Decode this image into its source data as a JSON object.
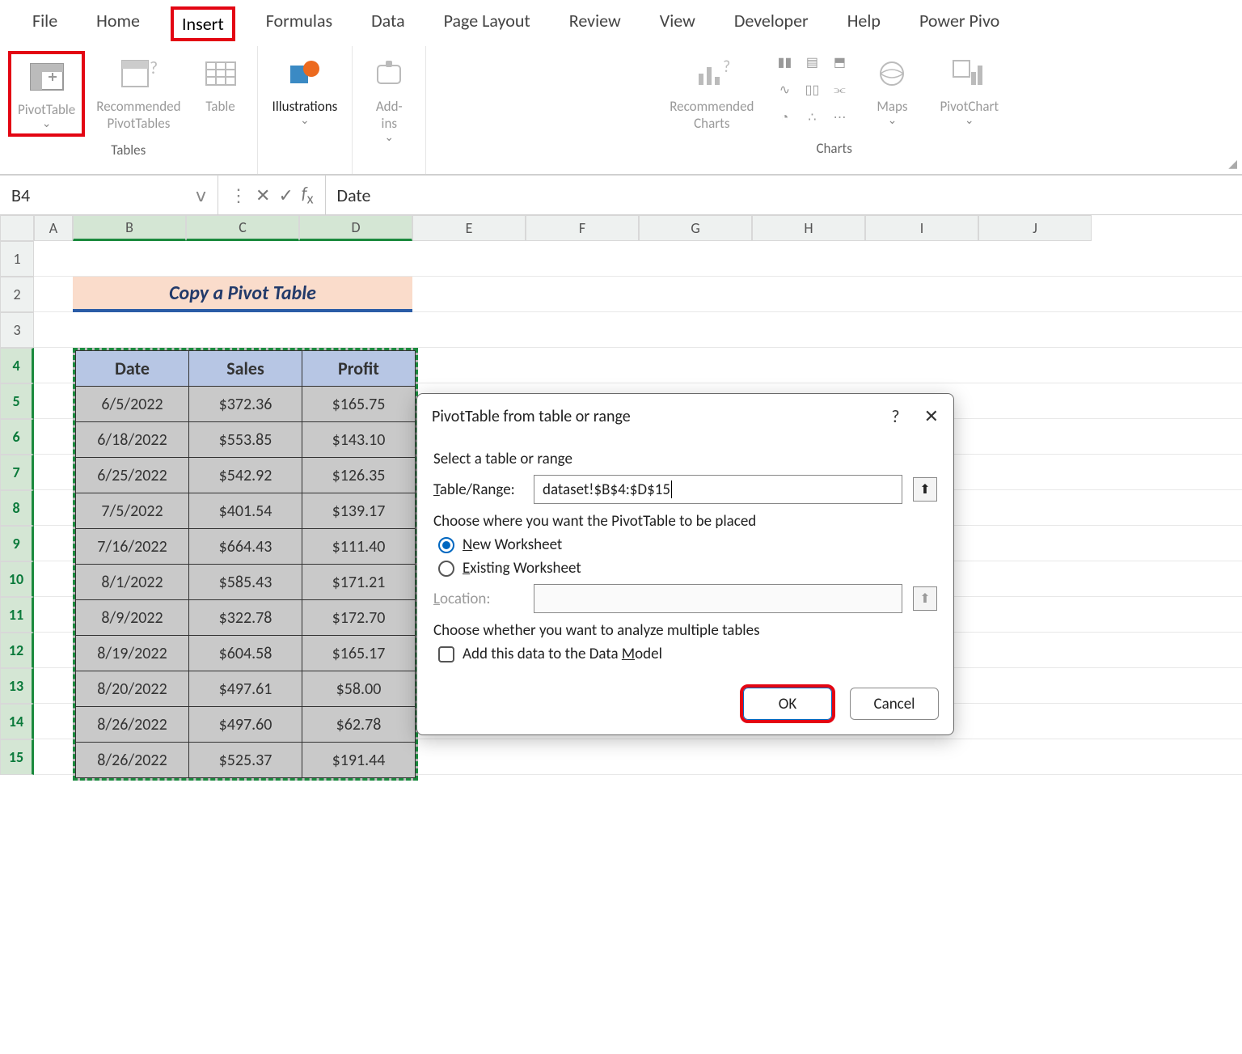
{
  "tabs": {
    "file": "File",
    "home": "Home",
    "insert": "Insert",
    "formulas": "Formulas",
    "data": "Data",
    "pagelayout": "Page Layout",
    "review": "Review",
    "view": "View",
    "developer": "Developer",
    "help": "Help",
    "powerpivot": "Power Pivo"
  },
  "ribbon": {
    "pivottable": "PivotTable",
    "recpivot": "Recommended\nPivotTables",
    "table": "Table",
    "illustrations": "Illustrations",
    "addins": "Add-\nins",
    "reccharts": "Recommended\nCharts",
    "maps": "Maps",
    "pivotchart": "PivotChart",
    "group_tables": "Tables",
    "group_charts": "Charts"
  },
  "namebox": "B4",
  "fx_value": "Date",
  "col_headers": [
    "A",
    "B",
    "C",
    "D",
    "E",
    "F",
    "G",
    "H",
    "I",
    "J"
  ],
  "row_headers": [
    "1",
    "2",
    "3",
    "4",
    "5",
    "6",
    "7",
    "8",
    "9",
    "10",
    "11",
    "12",
    "13",
    "14",
    "15"
  ],
  "banner": "Copy a Pivot Table",
  "table_headers": [
    "Date",
    "Sales",
    "Profit"
  ],
  "table_rows": [
    [
      "6/5/2022",
      "$372.36",
      "$165.75"
    ],
    [
      "6/18/2022",
      "$553.85",
      "$143.10"
    ],
    [
      "6/25/2022",
      "$542.92",
      "$126.35"
    ],
    [
      "7/5/2022",
      "$401.54",
      "$139.17"
    ],
    [
      "7/16/2022",
      "$664.43",
      "$111.40"
    ],
    [
      "8/1/2022",
      "$585.43",
      "$171.21"
    ],
    [
      "8/9/2022",
      "$322.78",
      "$172.70"
    ],
    [
      "8/19/2022",
      "$604.58",
      "$165.17"
    ],
    [
      "8/20/2022",
      "$497.61",
      "$58.00"
    ],
    [
      "8/26/2022",
      "$497.60",
      "$62.78"
    ],
    [
      "8/26/2022",
      "$525.37",
      "$191.44"
    ]
  ],
  "dialog": {
    "title": "PivotTable from table or range",
    "sec1": "Select a table or range",
    "tr_label": "Table/Range:",
    "tr_value": "dataset!$B$4:$D$15",
    "sec2": "Choose where you want the PivotTable to be placed",
    "opt_new": "New Worksheet",
    "opt_exist": "Existing Worksheet",
    "loc_label": "Location:",
    "sec3": "Choose whether you want to analyze multiple tables",
    "chk_dm": "Add this data to the Data Model",
    "ok": "OK",
    "cancel": "Cancel"
  },
  "colors": {
    "highlight": "#e30613",
    "banner_bg": "#fadccb",
    "banner_underline": "#2a5ca6",
    "table_header_bg": "#b7c6e4",
    "selection_border": "#1b8a3e",
    "primary_blue": "#0067c0"
  }
}
